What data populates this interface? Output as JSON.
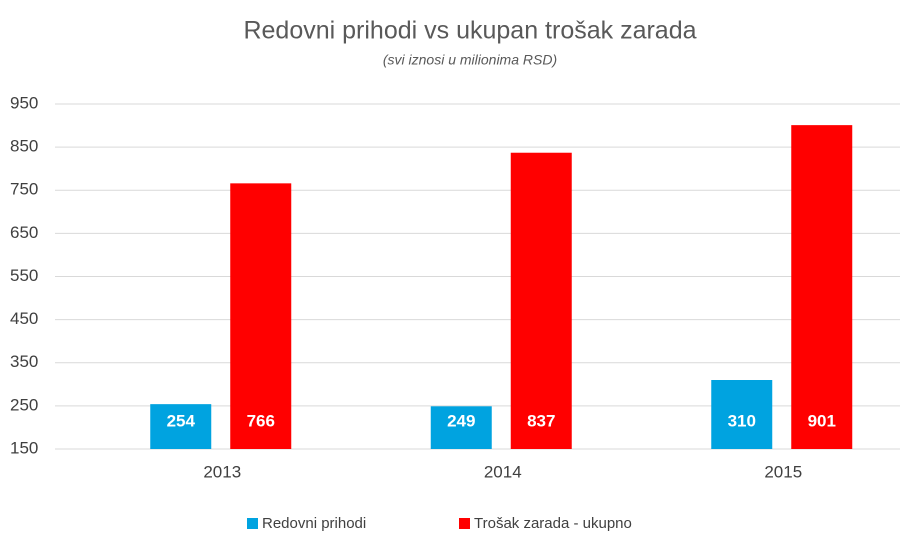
{
  "chart_data": {
    "type": "bar",
    "title": "Redovni prihodi vs ukupan trošak zarada",
    "subtitle": "(svi iznosi u milionima RSD)",
    "categories": [
      "2013",
      "2014",
      "2015"
    ],
    "series": [
      {
        "name": "Redovni prihodi",
        "color": "#00a3e0",
        "values": [
          254,
          249,
          310
        ]
      },
      {
        "name": "Trošak zarada - ukupno",
        "color": "#ff0000",
        "values": [
          766,
          837,
          901
        ]
      }
    ],
    "ylim": [
      150,
      950
    ],
    "yticks": [
      150,
      250,
      350,
      450,
      550,
      650,
      750,
      850,
      950
    ],
    "grid": true,
    "legend": "bottom"
  }
}
